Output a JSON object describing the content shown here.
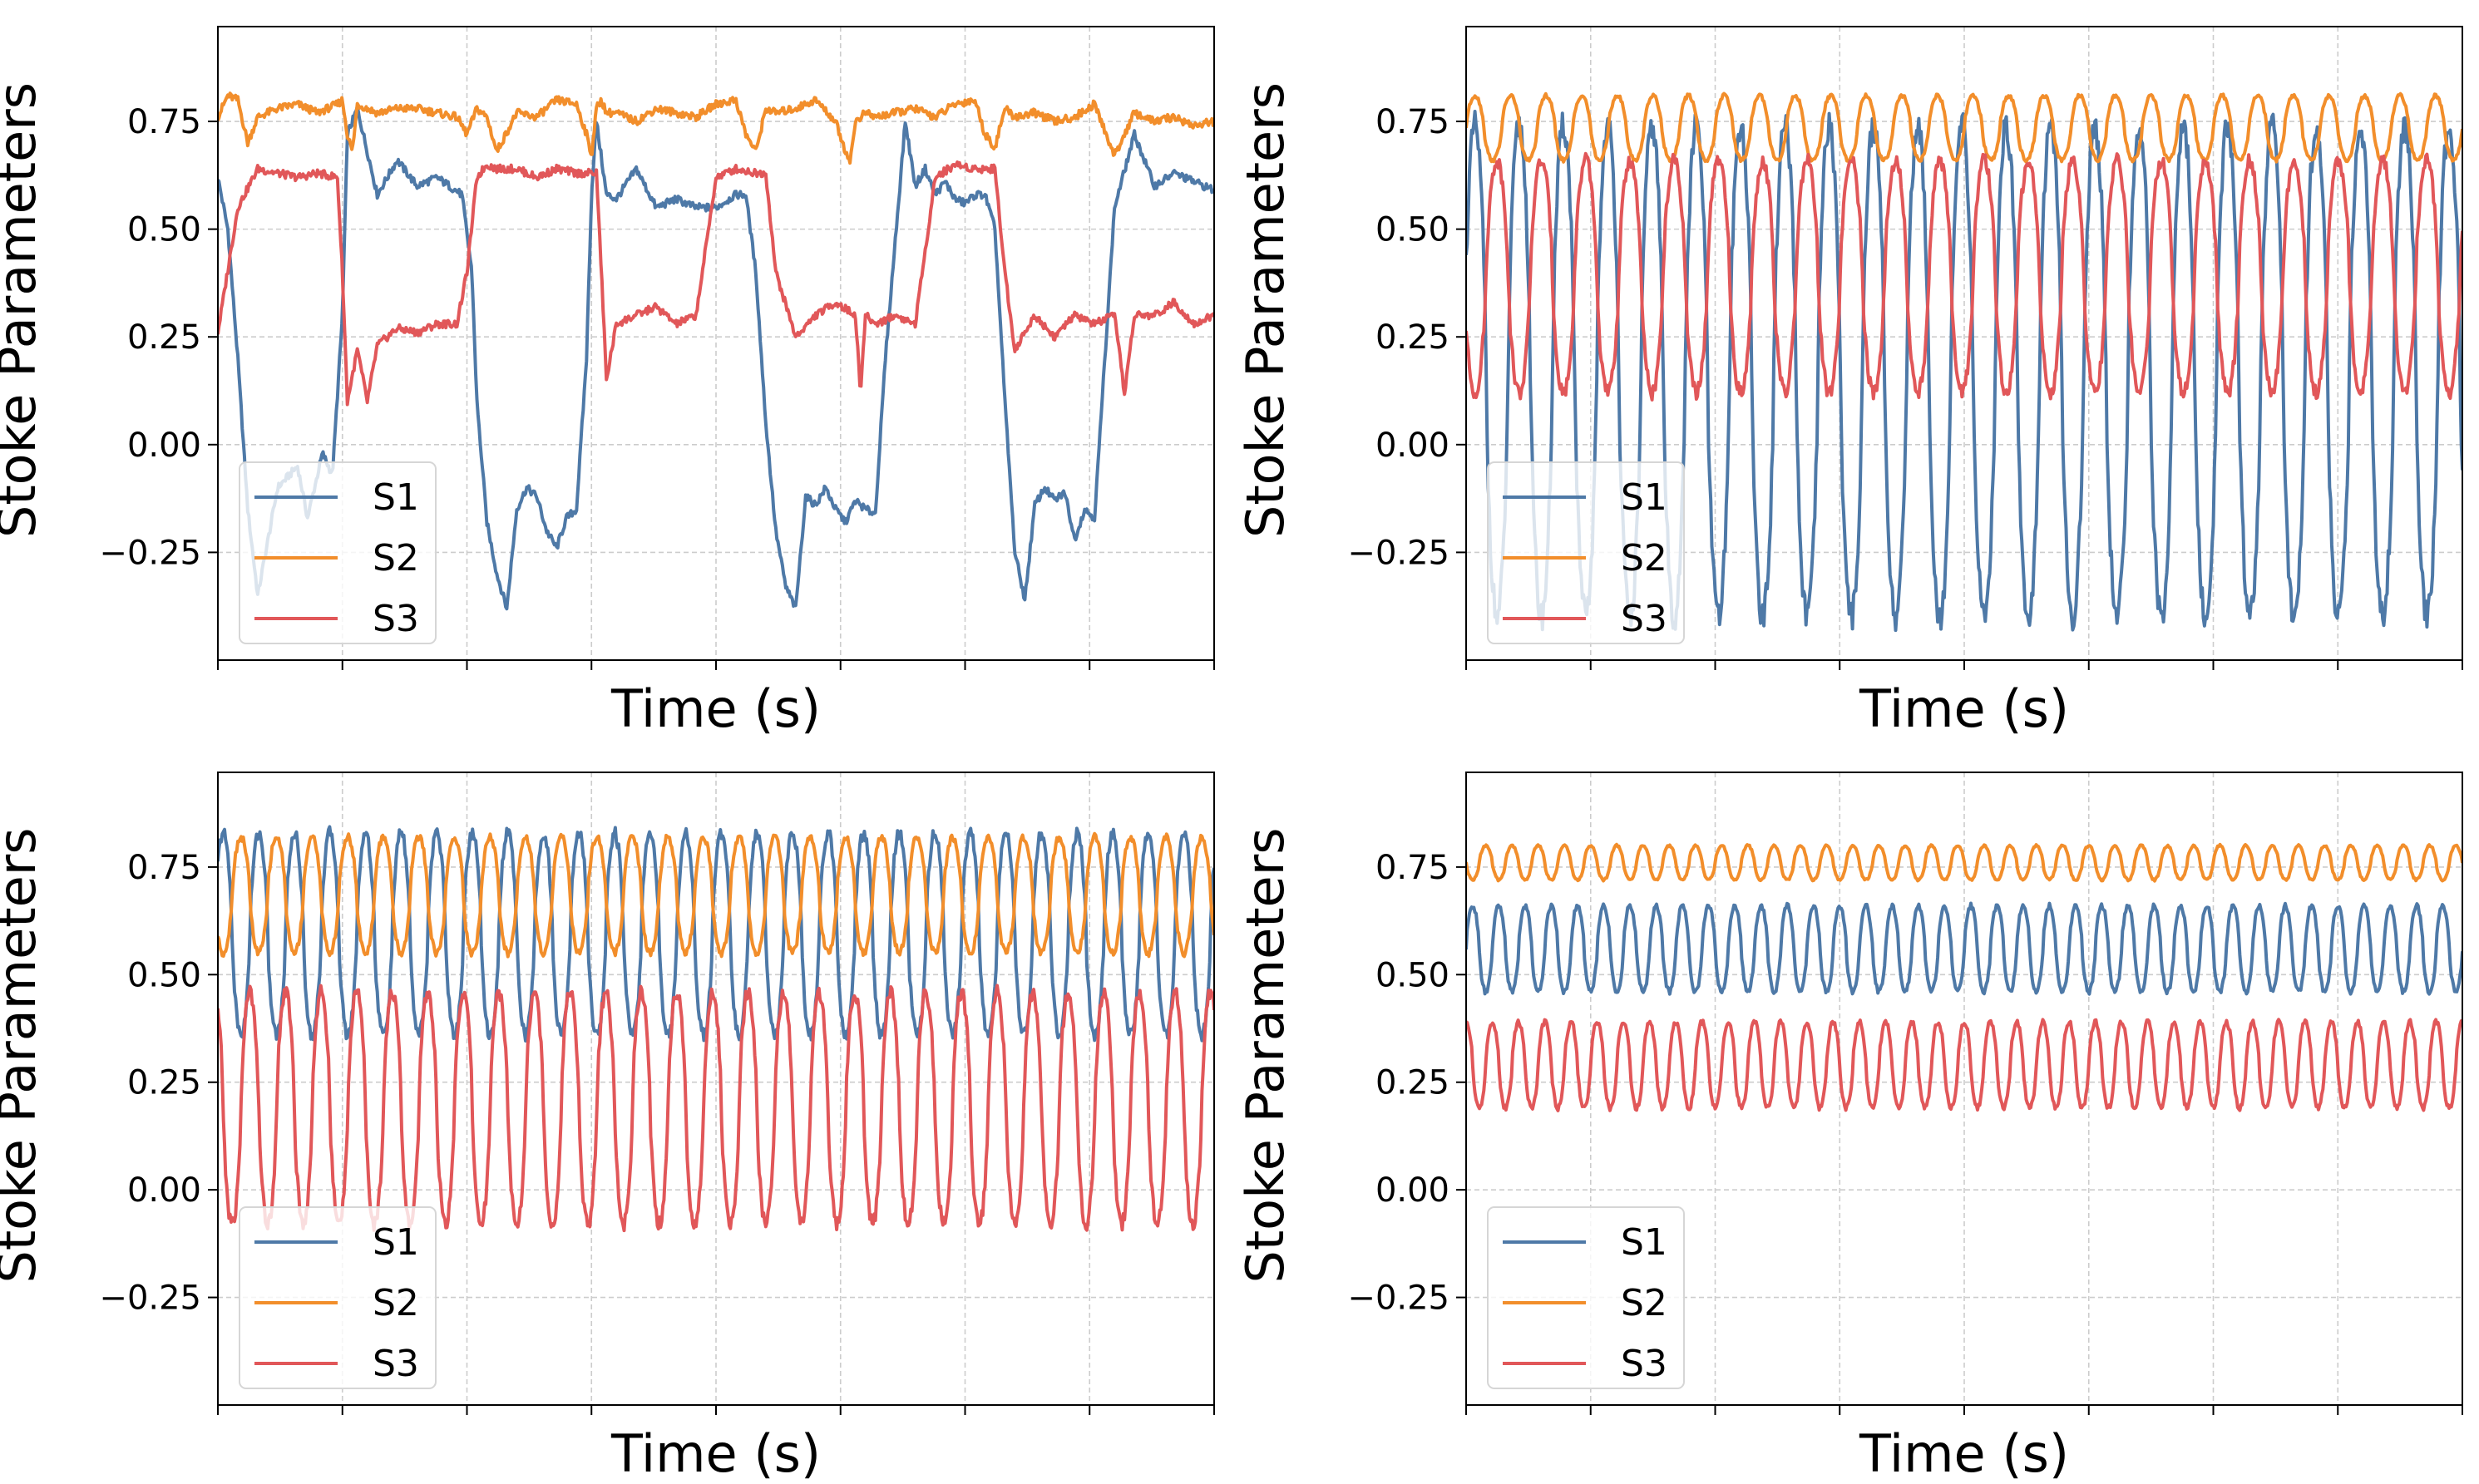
{
  "colors": {
    "S1": "#4e79a7",
    "S2": "#f28e2b",
    "S3": "#e15759",
    "grid": "#cccccc",
    "axis": "#000000"
  },
  "chart_data": [
    {
      "type": "line",
      "panel": "top-left",
      "xlabel": "Time (s)",
      "ylabel": "Stoke Parameters",
      "xlim": [
        0,
        1
      ],
      "ylim": [
        -0.5,
        0.97
      ],
      "yticks": [
        -0.25,
        0.0,
        0.25,
        0.5,
        0.75
      ],
      "ytick_labels": [
        "−0.25",
        "0.00",
        "0.25",
        "0.50",
        "0.75"
      ],
      "x_tick_count": 9,
      "x_tick_labels_shown": false,
      "grid": true,
      "legend_position": "lower-left",
      "series": [
        {
          "name": "S1",
          "color": "#4e79a7",
          "x": [
            0.0,
            0.01,
            0.02,
            0.03,
            0.04,
            0.06,
            0.08,
            0.09,
            0.105,
            0.115,
            0.125,
            0.13,
            0.14,
            0.16,
            0.18,
            0.2,
            0.22,
            0.245,
            0.255,
            0.26,
            0.27,
            0.28,
            0.29,
            0.3,
            0.31,
            0.32,
            0.33,
            0.34,
            0.35,
            0.36,
            0.37,
            0.375,
            0.38,
            0.39,
            0.4,
            0.42,
            0.44,
            0.46,
            0.48,
            0.5,
            0.52,
            0.53,
            0.54,
            0.55,
            0.56,
            0.57,
            0.58,
            0.59,
            0.6,
            0.61,
            0.62,
            0.63,
            0.64,
            0.65,
            0.66,
            0.67,
            0.69,
            0.7,
            0.71,
            0.72,
            0.73,
            0.74,
            0.75,
            0.76,
            0.77,
            0.78,
            0.79,
            0.8,
            0.81,
            0.82,
            0.83,
            0.84,
            0.85,
            0.86,
            0.87,
            0.88,
            0.9,
            0.92,
            0.94,
            0.96,
            0.98,
            1.0
          ],
          "y": [
            0.62,
            0.5,
            0.2,
            -0.15,
            -0.35,
            -0.1,
            -0.05,
            -0.17,
            -0.02,
            -0.07,
            0.3,
            0.72,
            0.78,
            0.58,
            0.66,
            0.6,
            0.62,
            0.58,
            0.4,
            0.1,
            -0.18,
            -0.3,
            -0.38,
            -0.15,
            -0.1,
            -0.12,
            -0.2,
            -0.24,
            -0.17,
            -0.15,
            0.2,
            0.58,
            0.75,
            0.58,
            0.57,
            0.64,
            0.55,
            0.57,
            0.55,
            0.55,
            0.58,
            0.58,
            0.4,
            0.05,
            -0.2,
            -0.33,
            -0.38,
            -0.12,
            -0.14,
            -0.1,
            -0.15,
            -0.18,
            -0.13,
            -0.15,
            -0.16,
            0.2,
            0.75,
            0.6,
            0.64,
            0.58,
            0.61,
            0.57,
            0.56,
            0.58,
            0.58,
            0.5,
            0.1,
            -0.25,
            -0.36,
            -0.14,
            -0.1,
            -0.13,
            -0.11,
            -0.22,
            -0.15,
            -0.17,
            0.55,
            0.72,
            0.6,
            0.63,
            0.61,
            0.59
          ]
        },
        {
          "name": "S2",
          "color": "#f28e2b",
          "x": [
            0.0,
            0.01,
            0.02,
            0.03,
            0.04,
            0.06,
            0.08,
            0.1,
            0.12,
            0.125,
            0.13,
            0.135,
            0.14,
            0.16,
            0.18,
            0.2,
            0.22,
            0.24,
            0.25,
            0.26,
            0.27,
            0.28,
            0.3,
            0.32,
            0.34,
            0.36,
            0.37,
            0.375,
            0.38,
            0.385,
            0.39,
            0.4,
            0.42,
            0.44,
            0.46,
            0.48,
            0.5,
            0.52,
            0.53,
            0.54,
            0.55,
            0.56,
            0.58,
            0.6,
            0.62,
            0.63,
            0.635,
            0.64,
            0.65,
            0.66,
            0.68,
            0.7,
            0.72,
            0.74,
            0.76,
            0.77,
            0.78,
            0.79,
            0.8,
            0.82,
            0.84,
            0.86,
            0.88,
            0.89,
            0.9,
            0.92,
            0.94,
            0.96,
            0.98,
            1.0
          ],
          "y": [
            0.76,
            0.81,
            0.8,
            0.7,
            0.76,
            0.78,
            0.79,
            0.77,
            0.79,
            0.8,
            0.72,
            0.68,
            0.79,
            0.77,
            0.78,
            0.78,
            0.77,
            0.76,
            0.72,
            0.78,
            0.76,
            0.68,
            0.77,
            0.76,
            0.8,
            0.79,
            0.72,
            0.67,
            0.78,
            0.8,
            0.77,
            0.77,
            0.75,
            0.78,
            0.77,
            0.76,
            0.79,
            0.8,
            0.72,
            0.68,
            0.78,
            0.77,
            0.78,
            0.8,
            0.75,
            0.68,
            0.66,
            0.75,
            0.77,
            0.76,
            0.77,
            0.78,
            0.76,
            0.79,
            0.8,
            0.72,
            0.69,
            0.78,
            0.76,
            0.77,
            0.75,
            0.76,
            0.79,
            0.73,
            0.67,
            0.77,
            0.75,
            0.76,
            0.74,
            0.75
          ]
        },
        {
          "name": "S3",
          "color": "#e15759",
          "x": [
            0.0,
            0.02,
            0.04,
            0.06,
            0.08,
            0.1,
            0.12,
            0.125,
            0.13,
            0.14,
            0.15,
            0.16,
            0.18,
            0.2,
            0.22,
            0.24,
            0.25,
            0.26,
            0.27,
            0.28,
            0.3,
            0.32,
            0.34,
            0.36,
            0.38,
            0.385,
            0.39,
            0.4,
            0.42,
            0.44,
            0.46,
            0.48,
            0.5,
            0.52,
            0.54,
            0.55,
            0.56,
            0.58,
            0.6,
            0.62,
            0.64,
            0.645,
            0.65,
            0.66,
            0.68,
            0.7,
            0.72,
            0.74,
            0.76,
            0.78,
            0.79,
            0.8,
            0.82,
            0.84,
            0.86,
            0.88,
            0.9,
            0.91,
            0.92,
            0.94,
            0.96,
            0.98,
            1.0
          ],
          "y": [
            0.26,
            0.55,
            0.64,
            0.63,
            0.62,
            0.63,
            0.62,
            0.4,
            0.1,
            0.22,
            0.1,
            0.23,
            0.27,
            0.26,
            0.28,
            0.28,
            0.4,
            0.62,
            0.65,
            0.64,
            0.64,
            0.62,
            0.64,
            0.63,
            0.63,
            0.4,
            0.15,
            0.28,
            0.3,
            0.32,
            0.28,
            0.3,
            0.62,
            0.64,
            0.63,
            0.63,
            0.4,
            0.25,
            0.3,
            0.33,
            0.3,
            0.12,
            0.3,
            0.28,
            0.3,
            0.28,
            0.62,
            0.65,
            0.64,
            0.64,
            0.4,
            0.22,
            0.3,
            0.25,
            0.3,
            0.28,
            0.3,
            0.12,
            0.3,
            0.3,
            0.33,
            0.28,
            0.3
          ]
        }
      ]
    },
    {
      "type": "line",
      "panel": "top-right",
      "xlabel": "Time (s)",
      "ylabel": "Stoke Parameters",
      "xlim": [
        0,
        1
      ],
      "ylim": [
        -0.5,
        0.97
      ],
      "yticks": [
        -0.25,
        0.0,
        0.25,
        0.5,
        0.75
      ],
      "ytick_labels": [
        "−0.25",
        "0.00",
        "0.25",
        "0.50",
        "0.75"
      ],
      "x_tick_count": 9,
      "x_tick_labels_shown": false,
      "grid": true,
      "legend_position": "lower-left",
      "series": [
        {
          "name": "S1",
          "color": "#4e79a7",
          "model": {
            "cycles": 22.5,
            "min": -0.4,
            "max": 0.74,
            "phase": 0.05
          }
        },
        {
          "name": "S2",
          "color": "#f28e2b",
          "model": {
            "cycles": 28,
            "min": 0.66,
            "max": 0.81,
            "phase": 0.0
          }
        },
        {
          "name": "S3",
          "color": "#e15759",
          "model": {
            "cycles": 22.5,
            "min": 0.12,
            "max": 0.66,
            "phase": 0.55
          }
        }
      ]
    },
    {
      "type": "line",
      "panel": "bottom-left",
      "xlabel": "Time (s)",
      "ylabel": "Stoke Parameters",
      "xlim": [
        0,
        1
      ],
      "ylim": [
        -0.5,
        0.97
      ],
      "yticks": [
        -0.25,
        0.0,
        0.25,
        0.5,
        0.75
      ],
      "ytick_labels": [
        "−0.25",
        "0.00",
        "0.25",
        "0.50",
        "0.75"
      ],
      "x_tick_count": 9,
      "x_tick_labels_shown": false,
      "grid": true,
      "legend_position": "lower-left",
      "series": [
        {
          "name": "S1",
          "color": "#4e79a7",
          "model": {
            "cycles": 28,
            "min": 0.36,
            "max": 0.83,
            "phase": 0.1
          }
        },
        {
          "name": "S2",
          "color": "#f28e2b",
          "model": {
            "cycles": 28,
            "min": 0.55,
            "max": 0.82,
            "phase": 0.6
          }
        },
        {
          "name": "S3",
          "color": "#e15759",
          "model": {
            "cycles": 28,
            "min": -0.08,
            "max": 0.46,
            "phase": 0.35
          }
        }
      ]
    },
    {
      "type": "line",
      "panel": "bottom-right",
      "xlabel": "Time (s)",
      "ylabel": "Stoke Parameters",
      "xlim": [
        0,
        1
      ],
      "ylim": [
        -0.5,
        0.97
      ],
      "yticks": [
        -0.25,
        0.0,
        0.25,
        0.5,
        0.75
      ],
      "ytick_labels": [
        "−0.25",
        "0.00",
        "0.25",
        "0.50",
        "0.75"
      ],
      "x_tick_count": 9,
      "x_tick_labels_shown": false,
      "grid": true,
      "legend_position": "lower-left",
      "series": [
        {
          "name": "S1",
          "color": "#4e79a7",
          "model": {
            "cycles": 38,
            "min": 0.46,
            "max": 0.66,
            "phase": 0.0
          }
        },
        {
          "name": "S2",
          "color": "#f28e2b",
          "model": {
            "cycles": 38,
            "min": 0.72,
            "max": 0.8,
            "phase": 0.5
          }
        },
        {
          "name": "S3",
          "color": "#e15759",
          "model": {
            "cycles": 38,
            "min": 0.19,
            "max": 0.39,
            "phase": 0.25
          }
        }
      ]
    }
  ]
}
